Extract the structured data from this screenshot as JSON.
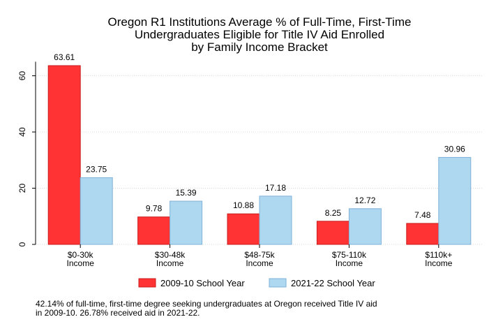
{
  "chart_data": {
    "type": "bar",
    "title": [
      "Oregon R1 Institutions Average % of Full-Time, First-Time",
      "Undergraduates Eligible for Title IV Aid Enrolled",
      "by Family Income Bracket"
    ],
    "categories": [
      [
        "$0-30k",
        "Income"
      ],
      [
        "$30-48k",
        "Income"
      ],
      [
        "$48-75k",
        "Income"
      ],
      [
        "$75-110k",
        "Income"
      ],
      [
        "$110k+",
        "Income"
      ]
    ],
    "series": [
      {
        "name": "2009-10 School Year",
        "values": [
          63.61,
          9.78,
          10.88,
          8.25,
          7.48
        ],
        "value_labels": [
          "63.61",
          "9.78",
          "10.88",
          "8.25",
          "7.48"
        ]
      },
      {
        "name": "2021-22 School Year",
        "values": [
          23.75,
          15.39,
          17.18,
          12.72,
          30.96
        ],
        "value_labels": [
          "23.75",
          "15.39",
          "17.18",
          "12.72",
          "30.96"
        ]
      }
    ],
    "y_ticks": [
      "0",
      "20",
      "40",
      "60"
    ],
    "ylim": [
      0,
      65
    ],
    "grid": true,
    "legend_position": "bottom",
    "xlabel": "",
    "ylabel": ""
  },
  "colors": {
    "series_fill": [
      "#ff3333",
      "#add8f0"
    ],
    "series_stroke": [
      "#c81e1e",
      "#7fb0d8"
    ],
    "grid": "#d8d8d8"
  },
  "footnote": [
    "42.14% of full-time, first-time degree seeking undergraduates at Oregon received Title IV aid",
    "in 2009-10. 26.78% received aid in 2021-22."
  ]
}
